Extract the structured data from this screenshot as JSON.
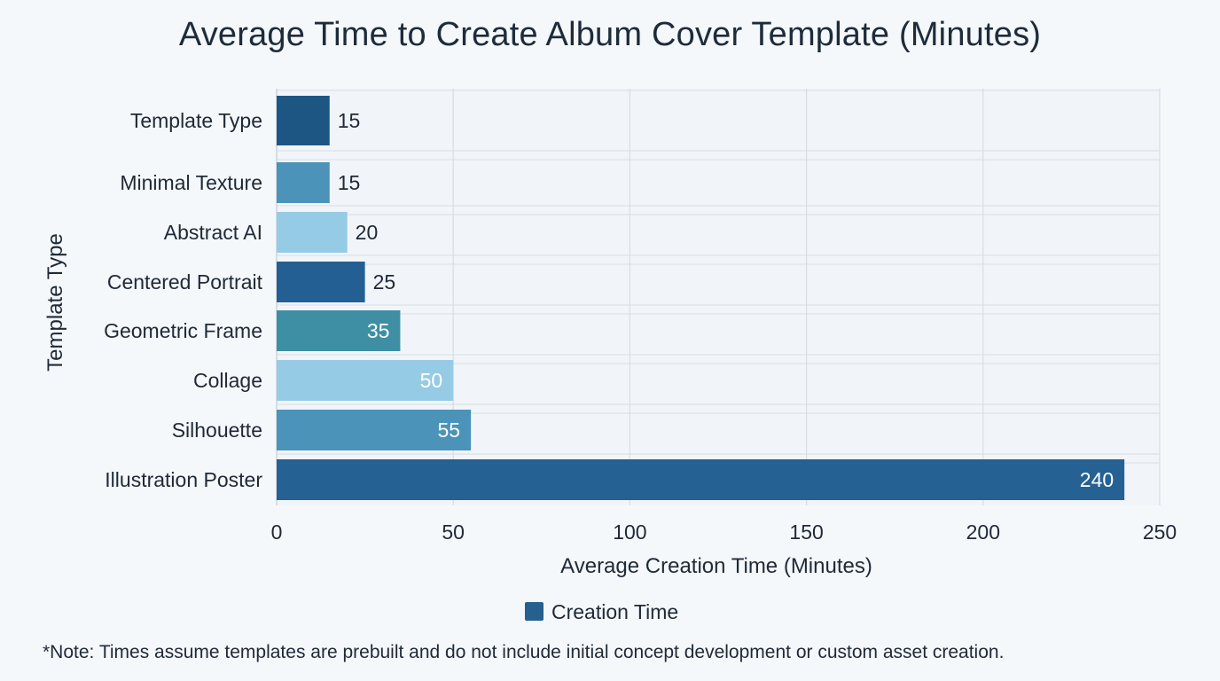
{
  "chart_data": {
    "type": "bar",
    "orientation": "horizontal",
    "title": "Average Time to Create Album Cover Template (Minutes)",
    "xlabel": "Average Creation Time (Minutes)",
    "ylabel": "Template Type",
    "xlim": [
      0,
      250
    ],
    "xticks": [
      0,
      50,
      100,
      150,
      200,
      250
    ],
    "grid": true,
    "legend_position": "bottom",
    "categories": [
      "Template Type",
      "Minimal Texture",
      "Abstract AI",
      "Centered Portrait",
      "Geometric Frame",
      "Collage",
      "Silhouette",
      "Illustration Poster"
    ],
    "series": [
      {
        "name": "Creation Time",
        "values": [
          15,
          15,
          20,
          25,
          35,
          50,
          55,
          240
        ],
        "colors": [
          "#1d5583",
          "#4b93b9",
          "#96cbe6",
          "#235f93",
          "#3f8fa4",
          "#96cbe6",
          "#4b93b9",
          "#266193"
        ],
        "legend_color": "#25608f"
      }
    ],
    "data_label_colors": [
      "#1f2937",
      "#1f2937",
      "#1f2937",
      "#1f2937",
      "#ffffff",
      "#ffffff",
      "#ffffff",
      "#ffffff"
    ]
  },
  "footnote": "*Note: Times assume templates are prebuilt and do not include initial concept development or custom asset creation."
}
